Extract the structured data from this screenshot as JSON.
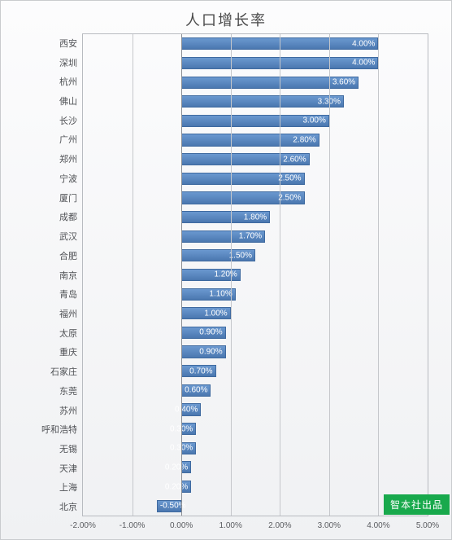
{
  "chart": {
    "title": "人口增长率",
    "type": "bar-horizontal",
    "background_gradient": [
      "#fcfcfd",
      "#f0f1f3"
    ],
    "border_color": "#c9cbce",
    "title_fontsize": 18,
    "title_color": "#4a4a4a",
    "xlim": [
      -2.0,
      5.0
    ],
    "xtick_step": 1.0,
    "xticks": [
      -2.0,
      -1.0,
      0.0,
      1.0,
      2.0,
      3.0,
      4.0,
      5.0
    ],
    "xtick_labels": [
      "-2.00%",
      "-1.00%",
      "0.00%",
      "1.00%",
      "2.00%",
      "3.00%",
      "4.00%",
      "5.00%"
    ],
    "xtick_fontsize": 10,
    "xtick_color": "#5a5c60",
    "gridline_color": "#c5c7cb",
    "zero_line_color": "#8b8e93",
    "plot_border_color": "#b8bbc0",
    "bar_gradient": [
      "#6a98cf",
      "#5b88c0",
      "#4a77af"
    ],
    "bar_border_color": "#3f6aa0",
    "bar_height_ratio": 0.64,
    "y_label_fontsize": 11,
    "y_label_color": "#4f5155",
    "value_label_fontsize": 10,
    "value_label_color": "#ffffff",
    "categories": [
      "西安",
      "深圳",
      "杭州",
      "佛山",
      "长沙",
      "广州",
      "郑州",
      "宁波",
      "厦门",
      "成都",
      "武汉",
      "合肥",
      "南京",
      "青岛",
      "福州",
      "太原",
      "重庆",
      "石家庄",
      "东莞",
      "苏州",
      "呼和浩特",
      "无锡",
      "天津",
      "上海",
      "北京"
    ],
    "values": [
      4.0,
      4.0,
      3.6,
      3.3,
      3.0,
      2.8,
      2.6,
      2.5,
      2.5,
      1.8,
      1.7,
      1.5,
      1.2,
      1.1,
      1.0,
      0.9,
      0.9,
      0.7,
      0.6,
      0.4,
      0.3,
      0.3,
      0.2,
      0.2,
      -0.5
    ],
    "value_labels": [
      "4.00%",
      "4.00%",
      "3.60%",
      "3.30%",
      "3.00%",
      "2.80%",
      "2.60%",
      "2.50%",
      "2.50%",
      "1.80%",
      "1.70%",
      "1.50%",
      "1.20%",
      "1.10%",
      "1.00%",
      "0.90%",
      "0.90%",
      "0.70%",
      "0.60%",
      "0.40%",
      "0.30%",
      "0.30%",
      "0.20%",
      "0.20%",
      "-0.50%"
    ],
    "watermark": {
      "text": "智本社出品",
      "background": "#18a94c",
      "color": "#ffffff",
      "fontsize": 12
    }
  }
}
